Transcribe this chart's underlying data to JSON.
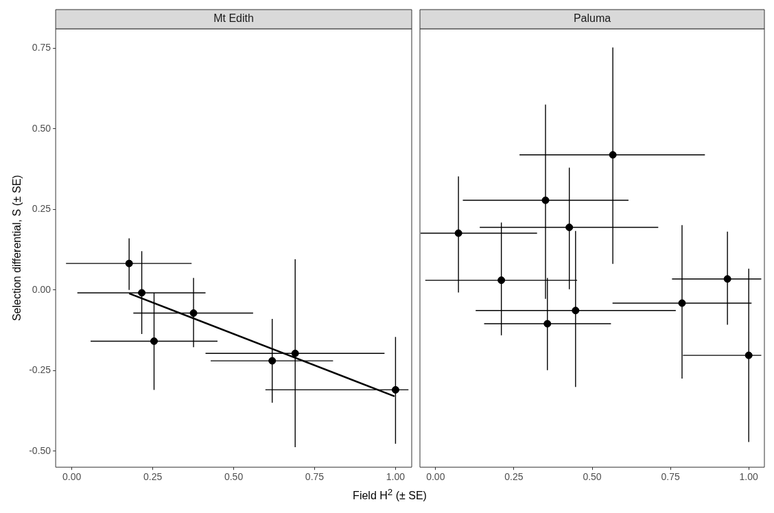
{
  "chart_data": [
    {
      "type": "scatter",
      "title": "Mt Edith",
      "xlabel": "Field H$^{2}$ (± SE)",
      "ylabel": "Selection differential, S (± SE)",
      "marker": "circle",
      "xlim": [
        -0.05,
        1.05
      ],
      "xticks": [
        {
          "value": 0,
          "label": "0.00"
        },
        {
          "value": 0.25,
          "label": "0.25"
        },
        {
          "value": 0.5,
          "label": "0.50"
        },
        {
          "value": 0.75,
          "label": "0.75"
        },
        {
          "value": 1,
          "label": "1.00"
        }
      ],
      "ylim": [
        -0.55,
        0.81
      ],
      "yticks": [
        {
          "value": -0.5,
          "label": "-0.50"
        },
        {
          "value": -0.25,
          "label": "-0.25"
        },
        {
          "value": 0,
          "label": "0.00"
        },
        {
          "value": 0.25,
          "label": "0.25"
        },
        {
          "value": 0.5,
          "label": "0.50"
        },
        {
          "value": 0.75,
          "label": "0.75"
        }
      ],
      "series": [
        {
          "color": "#000000",
          "x": [
            0.177,
            0.216,
            0.254,
            0.376,
            0.619,
            0.69,
            1.0
          ],
          "values": [
            0.082,
            -0.009,
            -0.159,
            -0.072,
            -0.22,
            -0.197,
            -0.31
          ],
          "errors": [
            [
              0.0,
              0.16
            ],
            [
              -0.137,
              0.12
            ],
            [
              -0.31,
              -0.009
            ],
            [
              -0.178,
              0.037
            ],
            [
              -0.35,
              -0.09
            ],
            [
              -0.488,
              0.095
            ],
            [
              -0.477,
              -0.146
            ]
          ],
          "xerrors": [
            [
              -0.018,
              0.37
            ],
            [
              0.017,
              0.413
            ],
            [
              0.058,
              0.45
            ],
            [
              0.19,
              0.56
            ],
            [
              0.429,
              0.807
            ],
            [
              0.413,
              0.966
            ],
            [
              0.598,
              1.04
            ]
          ]
        },
        {
          "type": "line",
          "marker": "none",
          "color": "#000000",
          "x": [
            0.177,
            0.997
          ],
          "values": [
            -0.011,
            -0.33
          ]
        }
      ]
    },
    {
      "type": "scatter",
      "title": "Paluma",
      "marker": "circle",
      "tick_labels": "x",
      "xlim": [
        -0.05,
        1.05
      ],
      "xticks": [
        {
          "value": 0,
          "label": "0.00"
        },
        {
          "value": 0.25,
          "label": "0.25"
        },
        {
          "value": 0.5,
          "label": "0.50"
        },
        {
          "value": 0.75,
          "label": "0.75"
        },
        {
          "value": 1,
          "label": "1.00"
        }
      ],
      "ylim": [
        -0.55,
        0.81
      ],
      "series": [
        {
          "color": "#000000",
          "x": [
            0.566,
            0.351,
            0.427,
            0.073,
            0.21,
            0.357,
            0.447,
            0.787,
            0.932,
            1.0
          ],
          "values": [
            0.419,
            0.278,
            0.194,
            0.176,
            0.03,
            -0.105,
            -0.064,
            -0.041,
            0.034,
            -0.203
          ],
          "errors": [
            [
              0.081,
              0.752
            ],
            [
              -0.028,
              0.575
            ],
            [
              0.002,
              0.379
            ],
            [
              -0.008,
              0.352
            ],
            [
              -0.141,
              0.209
            ],
            [
              -0.249,
              0.037
            ],
            [
              -0.301,
              0.183
            ],
            [
              -0.275,
              0.201
            ],
            [
              -0.108,
              0.181
            ],
            [
              -0.472,
              0.066
            ]
          ],
          "xerrors": [
            [
              0.268,
              0.86
            ],
            [
              0.087,
              0.616
            ],
            [
              0.141,
              0.711
            ],
            [
              -0.048,
              0.324
            ],
            [
              -0.033,
              0.452
            ],
            [
              0.155,
              0.56
            ],
            [
              0.128,
              0.767
            ],
            [
              0.565,
              1.009
            ],
            [
              0.755,
              1.04
            ],
            [
              0.79,
              1.04
            ]
          ]
        }
      ]
    }
  ]
}
